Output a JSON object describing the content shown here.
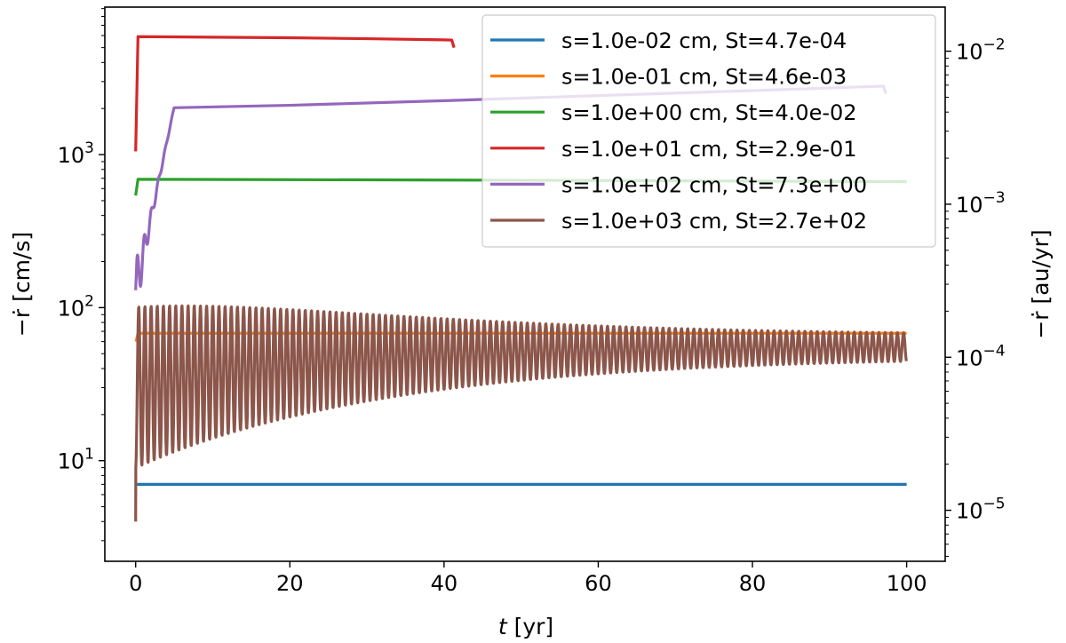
{
  "chart_data": {
    "type": "line",
    "xlabel_var": "t",
    "xlabel_unit": " [yr]",
    "ylabel_left_var": "−ṙ",
    "ylabel_left_unit": " [cm/s]",
    "ylabel_right_var": "−ṙ",
    "ylabel_right_unit": " [au/yr]",
    "xlim": [
      -4,
      105
    ],
    "ylim_left": [
      2.2,
      9200
    ],
    "y_scale": "log",
    "right_axis_scale": "log",
    "cm_s_to_au_yr": 2.11e-06,
    "grid": false,
    "legend_position": "top-right",
    "x_ticks": [
      0,
      20,
      40,
      60,
      80,
      100
    ],
    "x_tick_labels": [
      "0",
      "20",
      "40",
      "60",
      "80",
      "100"
    ],
    "y_left_ticks": [
      10,
      100,
      1000
    ],
    "y_left_tick_labels": [
      {
        "base": "10",
        "exp": "1"
      },
      {
        "base": "10",
        "exp": "2"
      },
      {
        "base": "10",
        "exp": "3"
      }
    ],
    "y_right_ticks": [
      1e-05,
      0.0001,
      0.001,
      0.01
    ],
    "y_right_tick_labels": [
      {
        "base": "10",
        "exp": "−5"
      },
      {
        "base": "10",
        "exp": "−4"
      },
      {
        "base": "10",
        "exp": "−3"
      },
      {
        "base": "10",
        "exp": "−2"
      }
    ],
    "series": [
      {
        "name": "s=1.0e-02 cm, St=4.7e-04",
        "color": "#1f77b4",
        "x": [
          0.2,
          100
        ],
        "y": [
          7.0,
          7.0
        ]
      },
      {
        "name": "s=1.0e-01 cm, St=4.6e-03",
        "color": "#ff7f0e",
        "x": [
          0.05,
          0.3,
          100
        ],
        "y": [
          60,
          68,
          68
        ]
      },
      {
        "name": "s=1.0e+00 cm, St=4.0e-02",
        "color": "#2ca02c",
        "x": [
          0,
          0.3,
          50,
          100
        ],
        "y": [
          540,
          690,
          680,
          665
        ]
      },
      {
        "name": "s=1.0e+01 cm, St=2.9e-01",
        "color": "#d62728",
        "x": [
          0,
          0.3,
          10,
          20,
          30,
          40,
          41,
          41.3
        ],
        "y": [
          1050,
          5900,
          5850,
          5800,
          5720,
          5620,
          5600,
          5000
        ]
      },
      {
        "name": "s=1.0e+02 cm, St=7.3e+00",
        "color": "#9467bd",
        "x": [
          0,
          5,
          20,
          40,
          60,
          80,
          97,
          97.3
        ],
        "y": [
          130,
          2050,
          2100,
          2250,
          2430,
          2620,
          2800,
          2500
        ],
        "osc": {
          "mid": 2050,
          "amp": 1.6,
          "period": 0.9,
          "decay": 1.2,
          "t_end": 5
        }
      },
      {
        "name": "s=1.0e+03 cm, St=2.7e+02",
        "color": "#8c564b",
        "x": [
          0,
          100
        ],
        "y": [
          4,
          56
        ],
        "osc": {
          "mid_start": 30,
          "mid_end": 56,
          "amp_start": 3.4,
          "amp_end": 1.18,
          "decay": 28,
          "period": 0.8
        }
      }
    ]
  }
}
